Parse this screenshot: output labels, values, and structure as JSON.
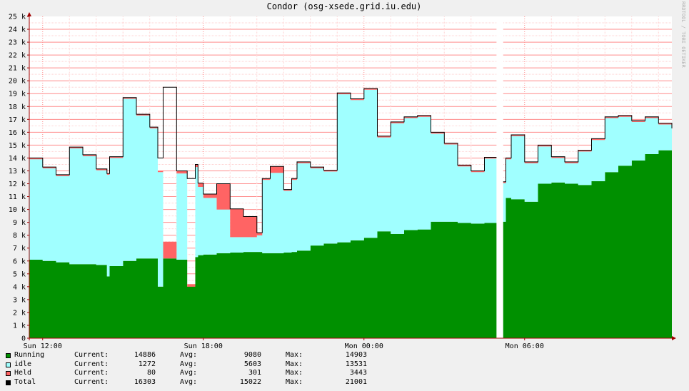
{
  "chart_data": {
    "type": "area",
    "title": "Condor (osg-xsede.grid.iu.edu)",
    "watermark": "RRDTOOL / TOBI OETIKER",
    "xlabel": "",
    "ylabel": "",
    "x_range_hours": [
      11.5,
      35.5
    ],
    "ylim": [
      0,
      25000
    ],
    "y_ticks": [
      {
        "value": 0,
        "label": "0"
      },
      {
        "value": 1000,
        "label": "1 k"
      },
      {
        "value": 2000,
        "label": "2 k"
      },
      {
        "value": 3000,
        "label": "3 k"
      },
      {
        "value": 4000,
        "label": "4 k"
      },
      {
        "value": 5000,
        "label": "5 k"
      },
      {
        "value": 6000,
        "label": "6 k"
      },
      {
        "value": 7000,
        "label": "7 k"
      },
      {
        "value": 8000,
        "label": "8 k"
      },
      {
        "value": 9000,
        "label": "9 k"
      },
      {
        "value": 10000,
        "label": "10 k"
      },
      {
        "value": 11000,
        "label": "11 k"
      },
      {
        "value": 12000,
        "label": "12 k"
      },
      {
        "value": 13000,
        "label": "13 k"
      },
      {
        "value": 14000,
        "label": "14 k"
      },
      {
        "value": 15000,
        "label": "15 k"
      },
      {
        "value": 16000,
        "label": "16 k"
      },
      {
        "value": 17000,
        "label": "17 k"
      },
      {
        "value": 18000,
        "label": "18 k"
      },
      {
        "value": 19000,
        "label": "19 k"
      },
      {
        "value": 20000,
        "label": "20 k"
      },
      {
        "value": 21000,
        "label": "21 k"
      },
      {
        "value": 22000,
        "label": "22 k"
      },
      {
        "value": 23000,
        "label": "23 k"
      },
      {
        "value": 24000,
        "label": "24 k"
      },
      {
        "value": 25000,
        "label": "25 k"
      }
    ],
    "x_ticks": [
      {
        "hour": 12,
        "label": "Sun 12:00"
      },
      {
        "hour": 18,
        "label": "Sun 18:00"
      },
      {
        "hour": 24,
        "label": "Mon 00:00"
      },
      {
        "hour": 30,
        "label": "Mon 06:00"
      }
    ],
    "grid": true,
    "stacked": true,
    "colors": {
      "running": "#009000",
      "idle": "#a0ffff",
      "held": "#ff6464",
      "total": "#000000",
      "background": "#f0f0f0",
      "plot_bg": "#ffffff",
      "minor_grid": "#ffd2d2",
      "major_grid": "#ff8c8c",
      "axis": "#a00000"
    },
    "series_keys": [
      "running",
      "idle",
      "held",
      "total"
    ],
    "x_hours": [
      11.5,
      12.0,
      12.5,
      13.0,
      13.5,
      14.0,
      14.4,
      14.5,
      15.0,
      15.5,
      16.0,
      16.3,
      16.5,
      17.0,
      17.4,
      17.7,
      17.8,
      18.0,
      18.5,
      19.0,
      19.5,
      20.0,
      20.2,
      20.5,
      21.0,
      21.3,
      21.5,
      22.0,
      22.5,
      23.0,
      23.5,
      24.0,
      24.5,
      25.0,
      25.5,
      26.0,
      26.5,
      27.0,
      27.5,
      28.0,
      28.5,
      29.0,
      29.3,
      29.5,
      30.0,
      30.5,
      31.0,
      31.5,
      32.0,
      32.5,
      33.0,
      33.5,
      34.0,
      34.5,
      35.0,
      35.5
    ],
    "series": [
      {
        "key": "running",
        "name": "Running",
        "values": [
          6100,
          6000,
          5900,
          5750,
          5750,
          5700,
          4800,
          5600,
          6000,
          6200,
          6200,
          4000,
          6200,
          6100,
          4000,
          6300,
          6450,
          6500,
          6600,
          6650,
          6700,
          6700,
          6600,
          6600,
          6650,
          6700,
          6800,
          7200,
          7350,
          7450,
          7600,
          7800,
          8300,
          8100,
          8400,
          8450,
          9050,
          9050,
          8950,
          8900,
          8950,
          9050,
          10900,
          10800,
          10600,
          12000,
          12100,
          12000,
          11900,
          12200,
          12900,
          13400,
          13800,
          14300,
          14600,
          14900
        ]
      },
      {
        "key": "idle",
        "name": "idle",
        "values": [
          7800,
          7200,
          6700,
          9000,
          8400,
          7350,
          7900,
          8400,
          12600,
          11100,
          10100,
          8900,
          0,
          6700,
          0,
          7000,
          5300,
          4400,
          3400,
          1200,
          1150,
          1300,
          5700,
          6250,
          4800,
          5600,
          6800,
          6000,
          5600,
          11500,
          10900,
          11500,
          7300,
          8600,
          8700,
          8750,
          6850,
          6000,
          4400,
          4000,
          5000,
          3000,
          3000,
          4900,
          3000,
          2900,
          1900,
          1600,
          2600,
          3200,
          4200,
          3800,
          3000,
          2800,
          2000,
          1400
        ]
      },
      {
        "key": "held",
        "name": "Held",
        "values": [
          100,
          100,
          100,
          100,
          100,
          100,
          100,
          100,
          100,
          100,
          100,
          100,
          1300,
          200,
          200,
          200,
          300,
          300,
          2000,
          2200,
          1600,
          200,
          100,
          500,
          100,
          100,
          100,
          100,
          100,
          100,
          100,
          100,
          100,
          100,
          100,
          100,
          100,
          100,
          100,
          100,
          100,
          100,
          100,
          100,
          100,
          100,
          100,
          100,
          100,
          100,
          100,
          100,
          100,
          100,
          100,
          80
        ]
      },
      {
        "key": "total",
        "name": "Total",
        "values": [
          14000,
          13300,
          12700,
          14850,
          14250,
          13150,
          12800,
          14100,
          18700,
          17400,
          16400,
          14000,
          19500,
          13000,
          12400,
          13500,
          12050,
          11200,
          12000,
          10050,
          9450,
          8200,
          12400,
          13350,
          11550,
          12400,
          13700,
          13300,
          13050,
          19050,
          18600,
          19400,
          15700,
          16800,
          17200,
          17300,
          16000,
          15150,
          13450,
          13000,
          14050,
          12150,
          14000,
          15800,
          13700,
          15000,
          14100,
          13700,
          14600,
          15500,
          17200,
          17300,
          16900,
          17200,
          16700,
          16303
        ]
      }
    ],
    "gaps_hours": [
      [
        28.95,
        29.2
      ]
    ],
    "legend": [
      {
        "key": "running",
        "name": "Running",
        "current": "14886",
        "avg": "9080",
        "max": "14903"
      },
      {
        "key": "idle",
        "name": "idle",
        "current": "1272",
        "avg": "5603",
        "max": "13531"
      },
      {
        "key": "held",
        "name": "Held",
        "current": "80",
        "avg": "301",
        "max": "3443"
      },
      {
        "key": "total",
        "name": "Total",
        "current": "16303",
        "avg": "15022",
        "max": "21001"
      }
    ],
    "legend_labels": {
      "current": "Current:",
      "avg": "Avg:",
      "max": "Max:"
    }
  }
}
